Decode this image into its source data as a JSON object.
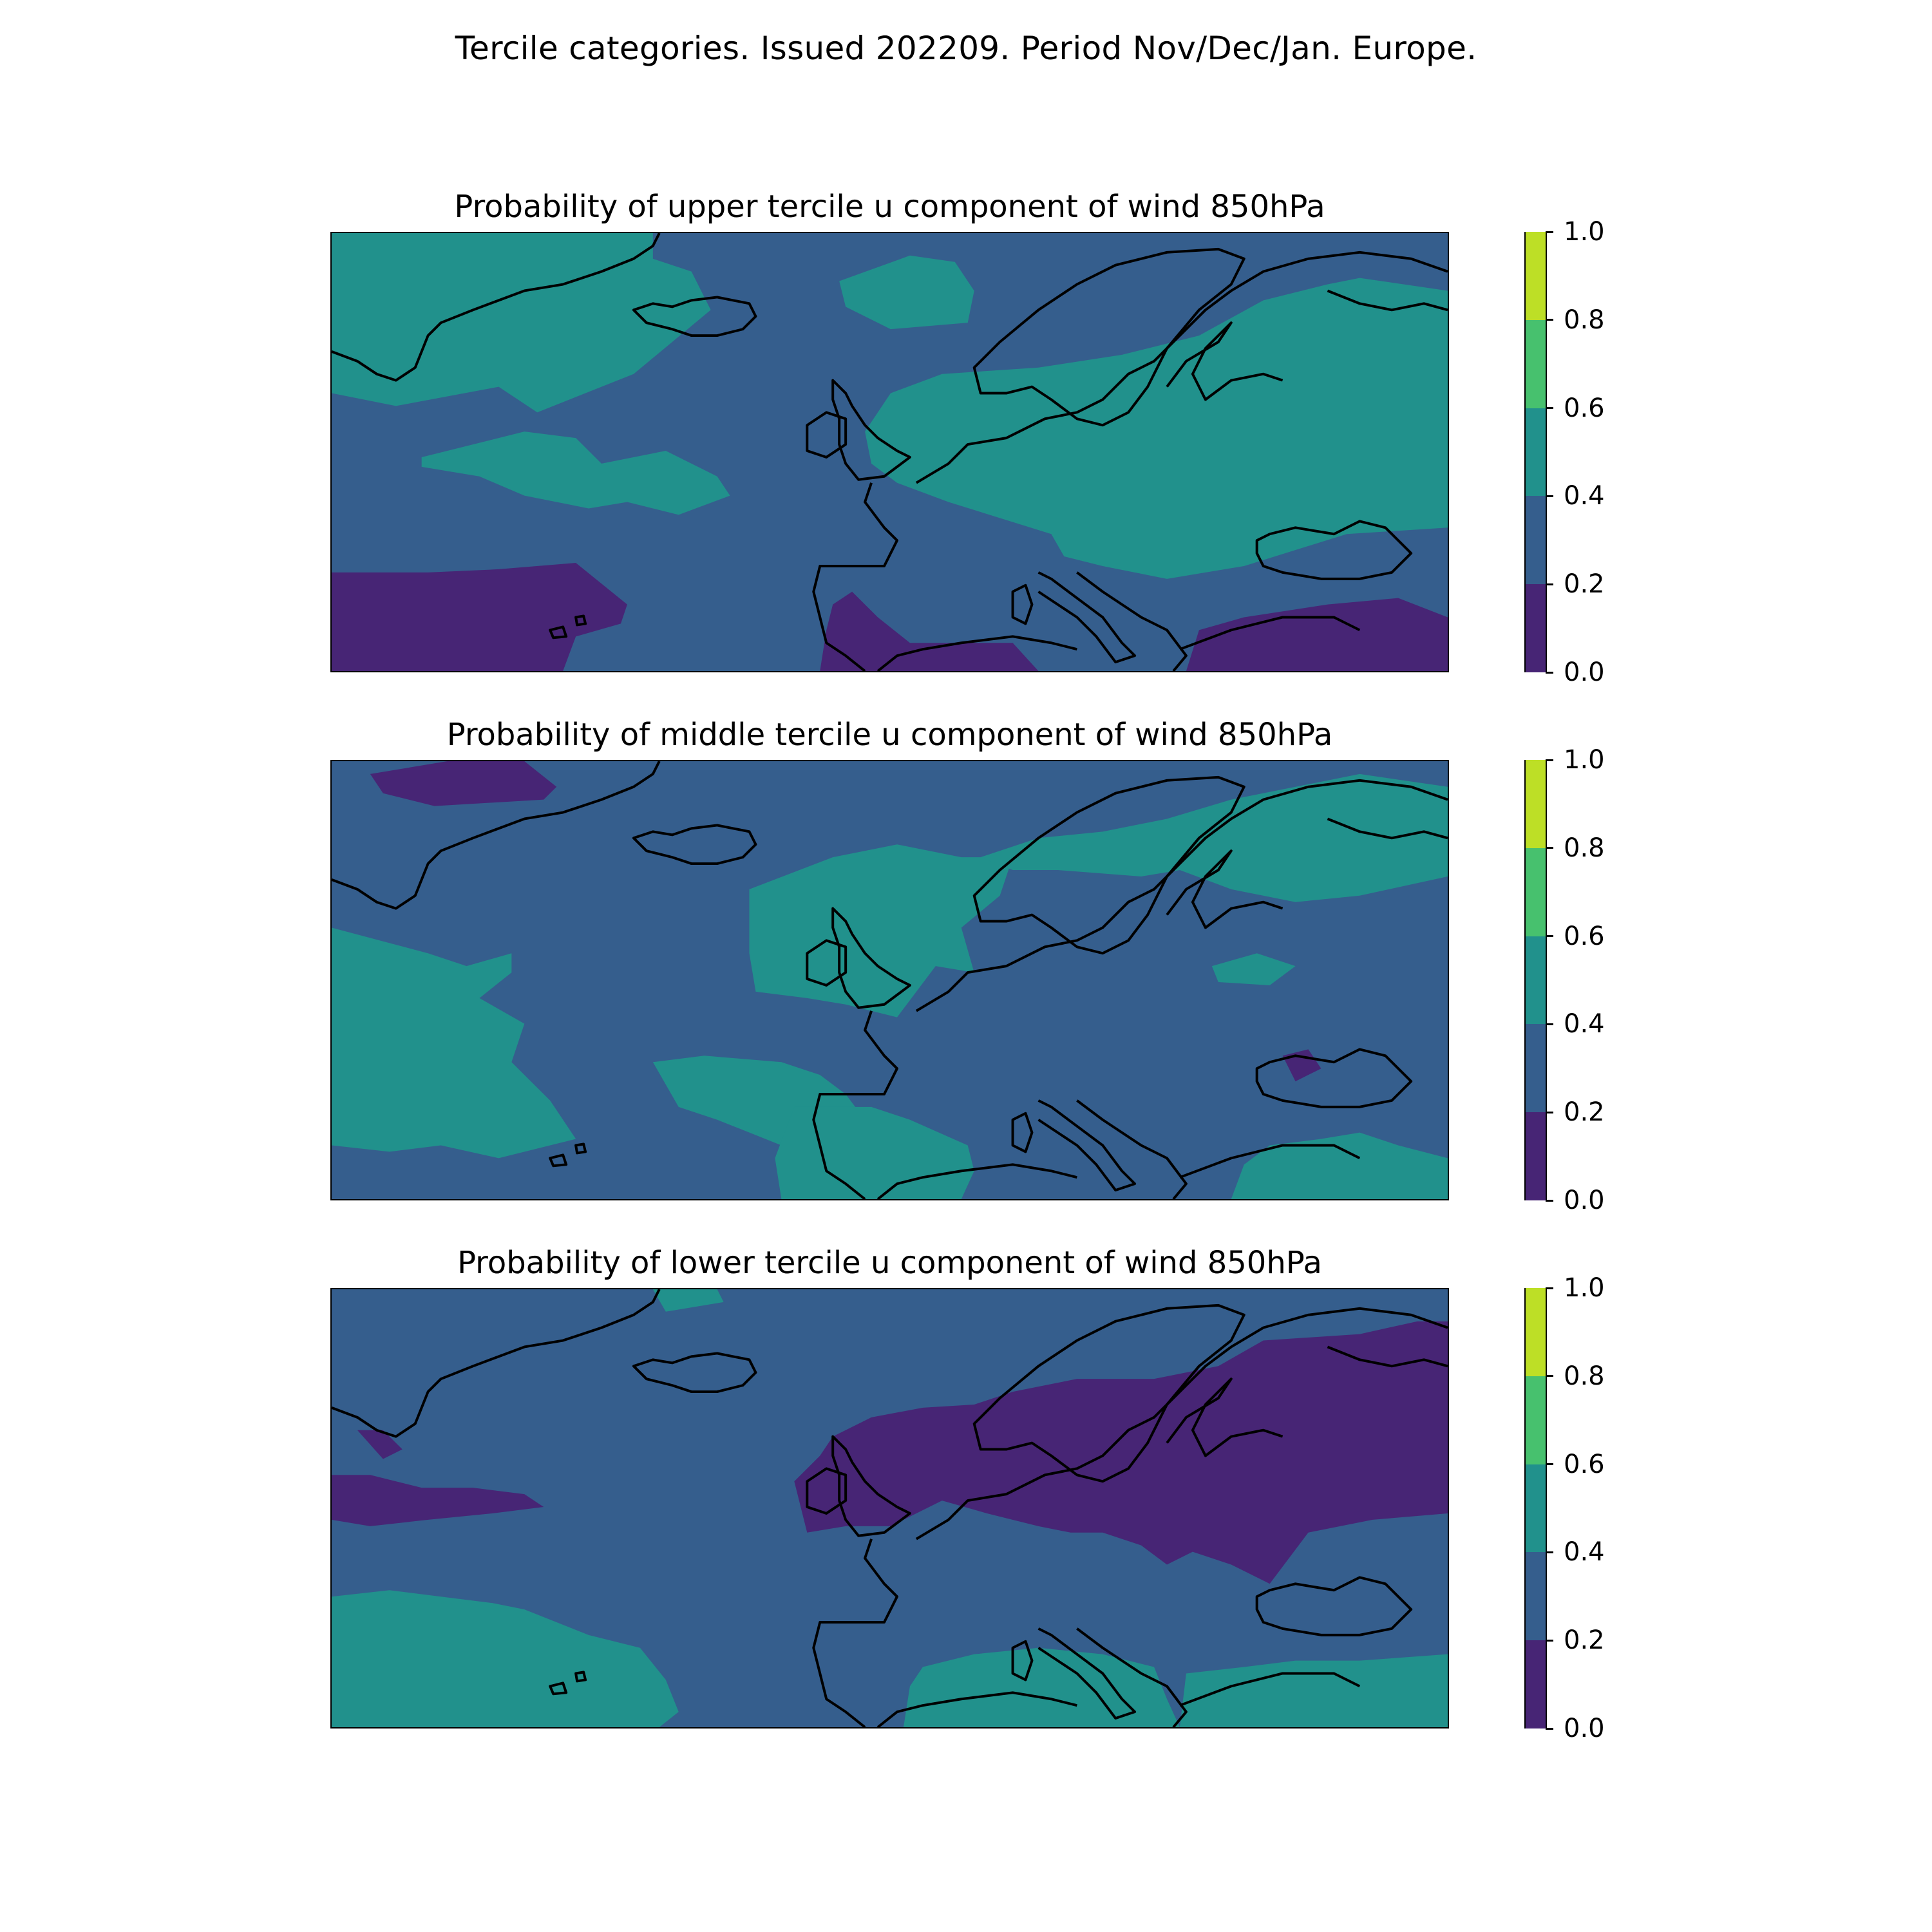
{
  "figure_title": "Tercile categories. Issued 202209. Period Nov/Dec/Jan. Europe.",
  "colors": {
    "bin_0_0.2": "#472575",
    "bin_0.2_0.4": "#355e8d",
    "bin_0.4_0.6": "#21918c",
    "bin_0.6_0.8": "#47c16e",
    "bin_0.8_1.0": "#bddf26",
    "coastline": "#000000"
  },
  "colorbar": {
    "levels": [
      0.0,
      0.2,
      0.4,
      0.6,
      0.8,
      1.0
    ],
    "tick_labels": [
      "0.0",
      "0.2",
      "0.4",
      "0.6",
      "0.8",
      "1.0"
    ]
  },
  "panels": [
    {
      "title": "Probability of upper tercile u component of wind 850hPa",
      "tercile": "upper",
      "background_bin": "0.2-0.4",
      "regions": [
        {
          "bin": "0.4-0.6",
          "area": "Greenland and Labrador Sea band"
        },
        {
          "bin": "0.4-0.6",
          "area": "mid-Atlantic patch west of Iberia"
        },
        {
          "bin": "0.4-0.6",
          "area": "northern Norwegian Sea patch"
        },
        {
          "bin": "0.4-0.6",
          "area": "northern, central and eastern Europe, Scandinavia, western Russia"
        },
        {
          "bin": "0.0-0.2",
          "area": "subtropical Atlantic south-west"
        },
        {
          "bin": "0.0-0.2",
          "area": "southern Iberia and western Mediterranean"
        },
        {
          "bin": "0.0-0.2",
          "area": "Aegean, Turkey and eastern Mediterranean"
        }
      ]
    },
    {
      "title": "Probability of middle tercile u component of wind 850hPa",
      "tercile": "middle",
      "background_bin": "0.2-0.4",
      "regions": [
        {
          "bin": "0.4-0.6",
          "area": "Iberia, western Mediterranean and North Africa coast"
        },
        {
          "bin": "0.4-0.6",
          "area": "central Atlantic west of Iberia"
        },
        {
          "bin": "0.4-0.6",
          "area": "British Isles, North Sea and southern Scandinavia"
        },
        {
          "bin": "0.4-0.6",
          "area": "northern Scandinavia, Finland and Kola"
        },
        {
          "bin": "0.4-0.6",
          "area": "Turkey and Black Sea south"
        },
        {
          "bin": "0.0-0.2",
          "area": "small patches near Greenland and Ukraine"
        }
      ]
    },
    {
      "title": "Probability of lower tercile u component of wind 850hPa",
      "tercile": "lower",
      "background_bin": "0.2-0.4",
      "regions": [
        {
          "bin": "0.0-0.2",
          "area": "northern Europe from Ireland to western Russia"
        },
        {
          "bin": "0.0-0.2",
          "area": "mid-Atlantic band south of Greenland"
        },
        {
          "bin": "0.4-0.6",
          "area": "subtropical Atlantic south-west"
        },
        {
          "bin": "0.4-0.6",
          "area": "Mediterranean and North Africa"
        },
        {
          "bin": "0.4-0.6",
          "area": "eastern Mediterranean and Turkey"
        }
      ]
    }
  ]
}
